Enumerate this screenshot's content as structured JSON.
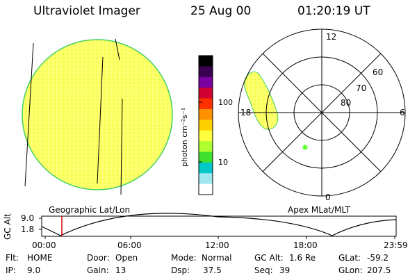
{
  "header": {
    "instrument": "Ultraviolet Imager",
    "date": "25 Aug 00",
    "time": "01:20:19 UT"
  },
  "colorbar": {
    "unit_label": "photon cm⁻²s⁻¹",
    "ticks": [
      "100",
      "10"
    ],
    "colors": [
      "#000000",
      "#3a0050",
      "#7a00a0",
      "#d00030",
      "#ff3000",
      "#ff9000",
      "#ffd000",
      "#ffff40",
      "#b0ff30",
      "#40e030",
      "#00c8c8",
      "#a0e8f0",
      "#ffffff"
    ]
  },
  "map_labels": {
    "left": "Geographic Lat/Lon",
    "right": "Apex MLat/MLT"
  },
  "polar_plot": {
    "mlt_labels": [
      "12",
      "18",
      "6",
      "0"
    ],
    "lat_labels": [
      "60",
      "70",
      "80"
    ]
  },
  "altitude_plot": {
    "ylabel": "GC Alt",
    "yticks": [
      "9.0",
      "1.8"
    ],
    "xticks": [
      "00:00",
      "06:00",
      "12:00",
      "18:00",
      "23:59"
    ],
    "current_time_marker": "01:20"
  },
  "info": {
    "flt_label": "Flt:",
    "flt_value": "HOME",
    "ip_label": "IP:",
    "ip_value": "9.0",
    "door_label": "Door:",
    "door_value": "Open",
    "gain_label": "Gain:",
    "gain_value": "13",
    "mode_label": "Mode:",
    "mode_value": "Normal",
    "dsp_label": "Dsp:",
    "dsp_value": "37.5",
    "gcalt_label": "GC Alt:",
    "gcalt_value": "1.6 Re",
    "seq_label": "Seq:",
    "seq_value": "39",
    "glat_label": "GLat:",
    "glat_value": "-59.2",
    "glon_label": "GLon:",
    "glon_value": "207.5"
  }
}
